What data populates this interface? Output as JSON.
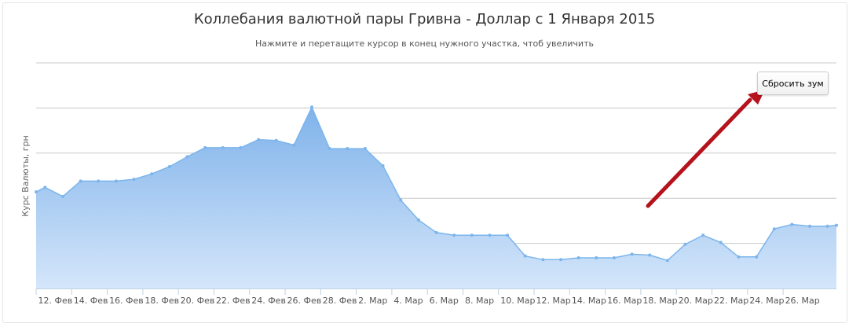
{
  "colors": {
    "area_top": "#7fb2ea",
    "area_bottom": "#d4e6fa",
    "line": "#7cb5ec",
    "grid": "#c8c8c8",
    "arrow": "#b5121b"
  },
  "reset_zoom": {
    "label": "Сбросить зум"
  },
  "chart_data": {
    "type": "area",
    "title": "Коллебания валютной пары Гривна - Доллар с 1 Января 2015",
    "subtitle": "Нажмите и перетащите курсор в конец нужного участка, чтоб увеличить",
    "ylabel": "Курс Валюты, грн",
    "xlabel": "",
    "grid": true,
    "legend": "none",
    "x_tick_labels": [
      "12. Фев",
      "14. Фев",
      "16. Фев",
      "18. Фев",
      "20. Фев",
      "22. Фев",
      "24. Фев",
      "26. Фев",
      "28. Фев",
      "2. Мар",
      "4. Мар",
      "6. Мар",
      "8. Мар",
      "10. Мар",
      "12. Мар",
      "14. Мар",
      "16. Мар",
      "18. Мар",
      "20. Мар",
      "22. Мар",
      "24. Мар",
      "26. Мар"
    ],
    "x_first_day": 42,
    "x_range_days": [
      42,
      87
    ],
    "ylim": [
      5,
      30
    ],
    "y_tick_values": [
      5,
      10,
      15,
      20,
      25,
      30
    ],
    "x": [
      42,
      42.5,
      43.5,
      44.5,
      45.5,
      46.5,
      47.5,
      48.5,
      49.5,
      50.5,
      51.5,
      52.5,
      53.5,
      54.5,
      55.5,
      56.5,
      57.5,
      58.5,
      59.5,
      60.5,
      61.5,
      62.5,
      63.5,
      64.5,
      65.5,
      66.5,
      67.5,
      68.5,
      69.5,
      70.5,
      71.5,
      72.5,
      73.5,
      74.5,
      75.5,
      76.5,
      77.5,
      78.5,
      79.5,
      80.5,
      81.5,
      82.5,
      83.5,
      84.5,
      85.5,
      86.5,
      87
    ],
    "values": [
      15.7,
      16.2,
      15.2,
      16.9,
      16.9,
      16.9,
      17.1,
      17.7,
      18.5,
      19.6,
      20.6,
      20.6,
      20.6,
      21.5,
      21.4,
      20.9,
      25.1,
      20.5,
      20.5,
      20.5,
      18.6,
      14.8,
      12.6,
      11.2,
      10.9,
      10.9,
      10.9,
      10.9,
      8.6,
      8.2,
      8.2,
      8.4,
      8.4,
      8.4,
      8.8,
      8.7,
      8.1,
      9.9,
      10.9,
      10.1,
      8.5,
      8.5,
      11.6,
      12.1,
      11.9,
      11.9,
      12.0
    ]
  }
}
